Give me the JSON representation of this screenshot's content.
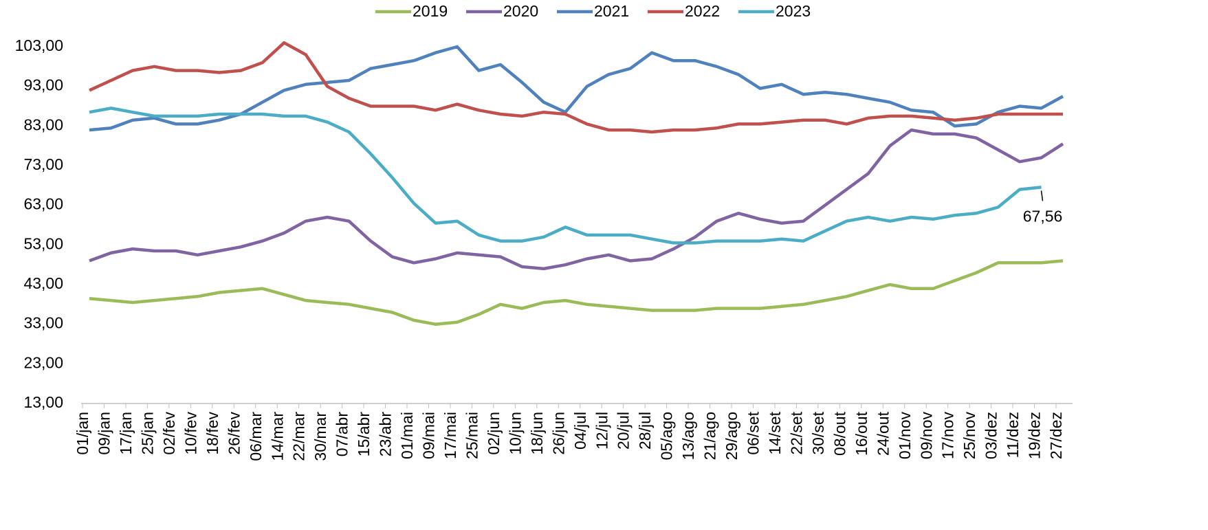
{
  "chart_data": {
    "type": "line",
    "categories": [
      "01/jan",
      "09/jan",
      "17/jan",
      "25/jan",
      "02/fev",
      "10/fev",
      "18/fev",
      "26/fev",
      "06/mar",
      "14/mar",
      "22/mar",
      "30/mar",
      "07/abr",
      "15/abr",
      "23/abr",
      "01/mai",
      "09/mai",
      "17/mai",
      "25/mai",
      "02/jun",
      "10/jun",
      "18/jun",
      "26/jun",
      "04/jul",
      "12/jul",
      "20/jul",
      "28/jul",
      "05/ago",
      "13/ago",
      "21/ago",
      "29/ago",
      "06/set",
      "14/set",
      "22/set",
      "30/set",
      "08/out",
      "16/out",
      "24/out",
      "01/nov",
      "09/nov",
      "17/nov",
      "25/nov",
      "03/dez",
      "11/dez",
      "19/dez",
      "27/dez"
    ],
    "series": [
      {
        "name": "2019",
        "color": "#9bbb59",
        "values": [
          39.5,
          39,
          38.5,
          39,
          39.5,
          40,
          41,
          41.5,
          42,
          40.5,
          39,
          38.5,
          38,
          37,
          36,
          34,
          33,
          33.5,
          35.5,
          38,
          37,
          38.5,
          39,
          38,
          37.5,
          37,
          36.5,
          36.5,
          36.5,
          37,
          37,
          37,
          37.5,
          38,
          39,
          40,
          41.5,
          43,
          42,
          42,
          44,
          46,
          48.5,
          48.5,
          48.5,
          49
        ]
      },
      {
        "name": "2020",
        "color": "#8064a2",
        "values": [
          49,
          51,
          52,
          51.5,
          51.5,
          50.5,
          51.5,
          52.5,
          54,
          56,
          59,
          60,
          59,
          54,
          50,
          48.5,
          49.5,
          51,
          50.5,
          50,
          47.5,
          47,
          48,
          49.5,
          50.5,
          49,
          49.5,
          52,
          55,
          59,
          61,
          59.5,
          58.5,
          59,
          63,
          67,
          71,
          78,
          82,
          81,
          81,
          80,
          77,
          74,
          75,
          78.5
        ]
      },
      {
        "name": "2021",
        "color": "#4f81bd",
        "values": [
          82,
          82.5,
          84.5,
          85,
          83.5,
          83.5,
          84.5,
          86,
          89,
          92,
          93.5,
          94,
          94.5,
          97.5,
          98.5,
          99.5,
          101.5,
          103,
          97,
          98.5,
          94,
          89,
          86.5,
          93,
          96,
          97.5,
          101.5,
          99.5,
          99.5,
          98,
          96,
          92.5,
          93.5,
          91,
          91.5,
          91,
          90,
          89,
          87,
          86.5,
          83,
          83.5,
          86.5,
          88,
          87.5,
          90.5
        ]
      },
      {
        "name": "2022",
        "color": "#c0504d",
        "values": [
          92,
          94.5,
          97,
          98,
          97,
          97,
          96.5,
          97,
          99,
          104,
          101,
          93,
          90,
          88,
          88,
          88,
          87,
          88.5,
          87,
          86,
          85.5,
          86.5,
          86,
          83.5,
          82,
          82,
          81.5,
          82,
          82,
          82.5,
          83.5,
          83.5,
          84,
          84.5,
          84.5,
          83.5,
          85,
          85.5,
          85.5,
          85,
          84.5,
          85,
          86,
          86,
          86,
          86
        ]
      },
      {
        "name": "2023",
        "color": "#4bacc6",
        "values": [
          86.5,
          87.5,
          86.5,
          85.5,
          85.5,
          85.5,
          86,
          86,
          86,
          85.5,
          85.5,
          84,
          81.5,
          76,
          70,
          63.5,
          58.5,
          59,
          55.5,
          54,
          54,
          55,
          57.5,
          55.5,
          55.5,
          55.5,
          54.5,
          53.5,
          53.5,
          54,
          54,
          54,
          54.5,
          54,
          56.5,
          59,
          60,
          59,
          60,
          59.5,
          60.5,
          61,
          62.5,
          67,
          67.56,
          null
        ],
        "value_labels": [
          null,
          null,
          null,
          null,
          null,
          null,
          null,
          null,
          null,
          null,
          null,
          null,
          null,
          null,
          null,
          null,
          null,
          null,
          null,
          null,
          null,
          null,
          null,
          null,
          null,
          null,
          null,
          null,
          null,
          null,
          null,
          null,
          null,
          null,
          null,
          null,
          null,
          null,
          null,
          null,
          null,
          null,
          null,
          null,
          "67,56",
          null
        ]
      }
    ],
    "ylim": [
      13,
      103
    ],
    "yticks": [
      {
        "value": 13,
        "label": "13,00"
      },
      {
        "value": 23,
        "label": "23,00"
      },
      {
        "value": 33,
        "label": "33,00"
      },
      {
        "value": 43,
        "label": "43,00"
      },
      {
        "value": 53,
        "label": "53,00"
      },
      {
        "value": 63,
        "label": "63,00"
      },
      {
        "value": 73,
        "label": "73,00"
      },
      {
        "value": 83,
        "label": "83,00"
      },
      {
        "value": 93,
        "label": "93,00"
      },
      {
        "value": 103,
        "label": "103,00"
      }
    ],
    "grid": false,
    "legend": "top"
  }
}
